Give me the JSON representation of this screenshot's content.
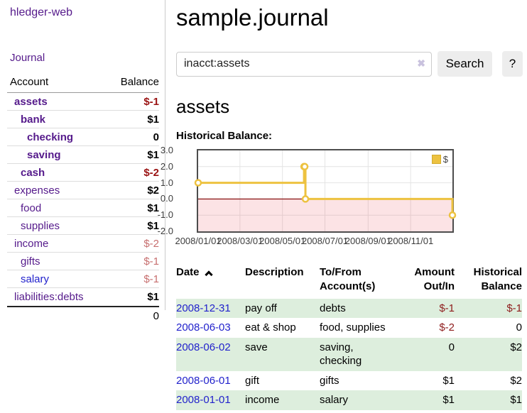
{
  "sidebar": {
    "brand": "hledger-web",
    "journal_link": "Journal",
    "accounts_table": {
      "col_account": "Account",
      "col_balance": "Balance",
      "rows": [
        {
          "name": "assets",
          "balance": "$-1",
          "level": 0,
          "bold": true,
          "blue": false
        },
        {
          "name": "bank",
          "balance": "$1",
          "level": 1,
          "bold": true,
          "blue": false
        },
        {
          "name": "checking",
          "balance": "0",
          "level": 2,
          "bold": true,
          "blue": false
        },
        {
          "name": "saving",
          "balance": "$1",
          "level": 2,
          "bold": true,
          "blue": false
        },
        {
          "name": "cash",
          "balance": "$-2",
          "level": 1,
          "bold": true,
          "blue": false
        },
        {
          "name": "expenses",
          "balance": "$2",
          "level": 0,
          "bold": false,
          "blue": false
        },
        {
          "name": "food",
          "balance": "$1",
          "level": 1,
          "bold": false,
          "blue": false
        },
        {
          "name": "supplies",
          "balance": "$1",
          "level": 1,
          "bold": false,
          "blue": false
        },
        {
          "name": "income",
          "balance": "$-2",
          "level": 0,
          "bold": false,
          "blue": false
        },
        {
          "name": "gifts",
          "balance": "$-1",
          "level": 1,
          "bold": false,
          "blue": false
        },
        {
          "name": "salary",
          "balance": "$-1",
          "level": 1,
          "bold": false,
          "blue": true
        },
        {
          "name": "liabilities:debts",
          "balance": "$1",
          "level": 0,
          "bold": false,
          "blue": false
        }
      ],
      "total": "0"
    }
  },
  "header": {
    "title": "sample.journal"
  },
  "search": {
    "value": "inacct:assets",
    "clear_icon": "✖",
    "button": "Search",
    "help_button": "?"
  },
  "account_page": {
    "heading": "assets",
    "chart_title": "Historical Balance:"
  },
  "chart_data": {
    "type": "line",
    "step": true,
    "title": "Historical Balance:",
    "series_label": "$",
    "series": [
      {
        "name": "$",
        "color": "#edc240",
        "points": [
          [
            "2008-01-01",
            1
          ],
          [
            "2008-06-01",
            2
          ],
          [
            "2008-06-02",
            2
          ],
          [
            "2008-06-03",
            0
          ],
          [
            "2008-12-31",
            -1
          ]
        ]
      }
    ],
    "x_range": [
      "2008-01-01",
      "2008-12-31"
    ],
    "x_tick_labels": [
      "2008/01/01",
      "2008/03/01",
      "2008/05/01",
      "2008/07/01",
      "2008/09/01",
      "2008/11/01"
    ],
    "y_ticks": [
      3,
      2,
      1,
      0,
      -1,
      -2
    ],
    "y_tick_labels": [
      "3.0",
      "2.0",
      "1.0",
      "0.0",
      "-1.0",
      "-2.0"
    ],
    "ylim": [
      -2,
      3
    ],
    "grid": true,
    "legend_position": "top-right",
    "negative_region": true,
    "negative_region_color": "#f9dcdc",
    "zero_line_color": "#8f2020"
  },
  "register_table": {
    "columns": {
      "date": "Date",
      "description": "Description",
      "accounts": "To/From Account(s)",
      "amount": "Amount Out/In",
      "balance": "Historical Balance"
    },
    "rows": [
      {
        "date": "2008-12-31",
        "description": "pay off",
        "accounts": "debts",
        "amount": "$-1",
        "balance": "$-1"
      },
      {
        "date": "2008-06-03",
        "description": "eat & shop",
        "accounts": "food, supplies",
        "amount": "$-2",
        "balance": "0"
      },
      {
        "date": "2008-06-02",
        "description": "save",
        "accounts": "saving,\nchecking",
        "amount": "0",
        "balance": "$2"
      },
      {
        "date": "2008-06-01",
        "description": "gift",
        "accounts": "gifts",
        "amount": "$1",
        "balance": "$2"
      },
      {
        "date": "2008-01-01",
        "description": "income",
        "accounts": "salary",
        "amount": "$1",
        "balance": "$1"
      }
    ]
  }
}
